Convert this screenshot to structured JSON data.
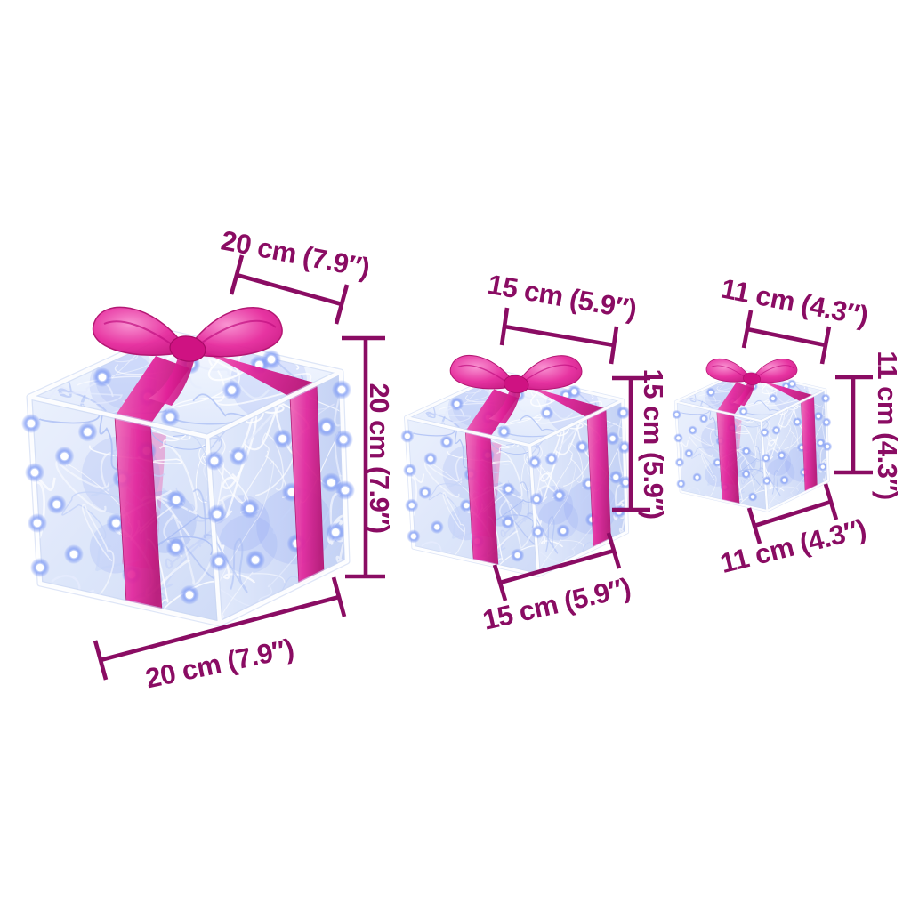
{
  "diagram": {
    "background_color": "#ffffff",
    "annotation_color": "#8a0c63",
    "boxes": [
      {
        "name": "large-gift-box",
        "top": "20 cm (7.9″)",
        "height": "20 cm (7.9″)",
        "bottom": "20 cm (7.9″)"
      },
      {
        "name": "medium-gift-box",
        "top": "15 cm (5.9″)",
        "height": "15 cm (5.9″)",
        "bottom": "15 cm (5.9″)"
      },
      {
        "name": "small-gift-box",
        "top": "11 cm (4.3″)",
        "height": "11 cm (4.3″)",
        "bottom": "11 cm (4.3″)"
      }
    ],
    "colors": {
      "ribbon_pink": "#e3219a",
      "ribbon_deep": "#b90e73",
      "led_blue": "#5b7df0",
      "acrylic_blue": "#ccd9f7"
    }
  }
}
